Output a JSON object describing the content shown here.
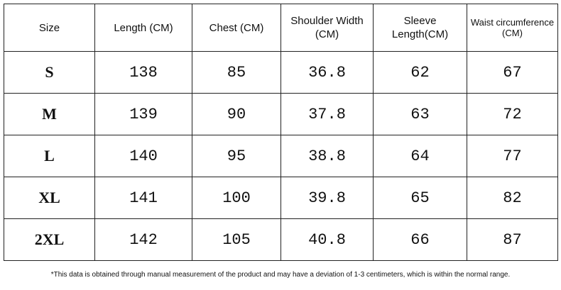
{
  "table": {
    "header": [
      "Size",
      "Length (CM)",
      "Chest (CM)",
      "Shoulder Width (CM)",
      "Sleeve Length(CM)",
      "Waist circumference (CM)"
    ],
    "rows": [
      [
        "S",
        138,
        85,
        36.8,
        62,
        67
      ],
      [
        "M",
        139,
        90,
        37.8,
        63,
        72
      ],
      [
        "L",
        140,
        95,
        38.8,
        64,
        77
      ],
      [
        "XL",
        141,
        100,
        39.8,
        65,
        82
      ],
      [
        "2XL",
        142,
        105,
        40.8,
        66,
        87
      ]
    ]
  },
  "footnote": "*This data is obtained through manual measurement of the product and may have a deviation of 1-3 centimeters, which is within the normal range."
}
